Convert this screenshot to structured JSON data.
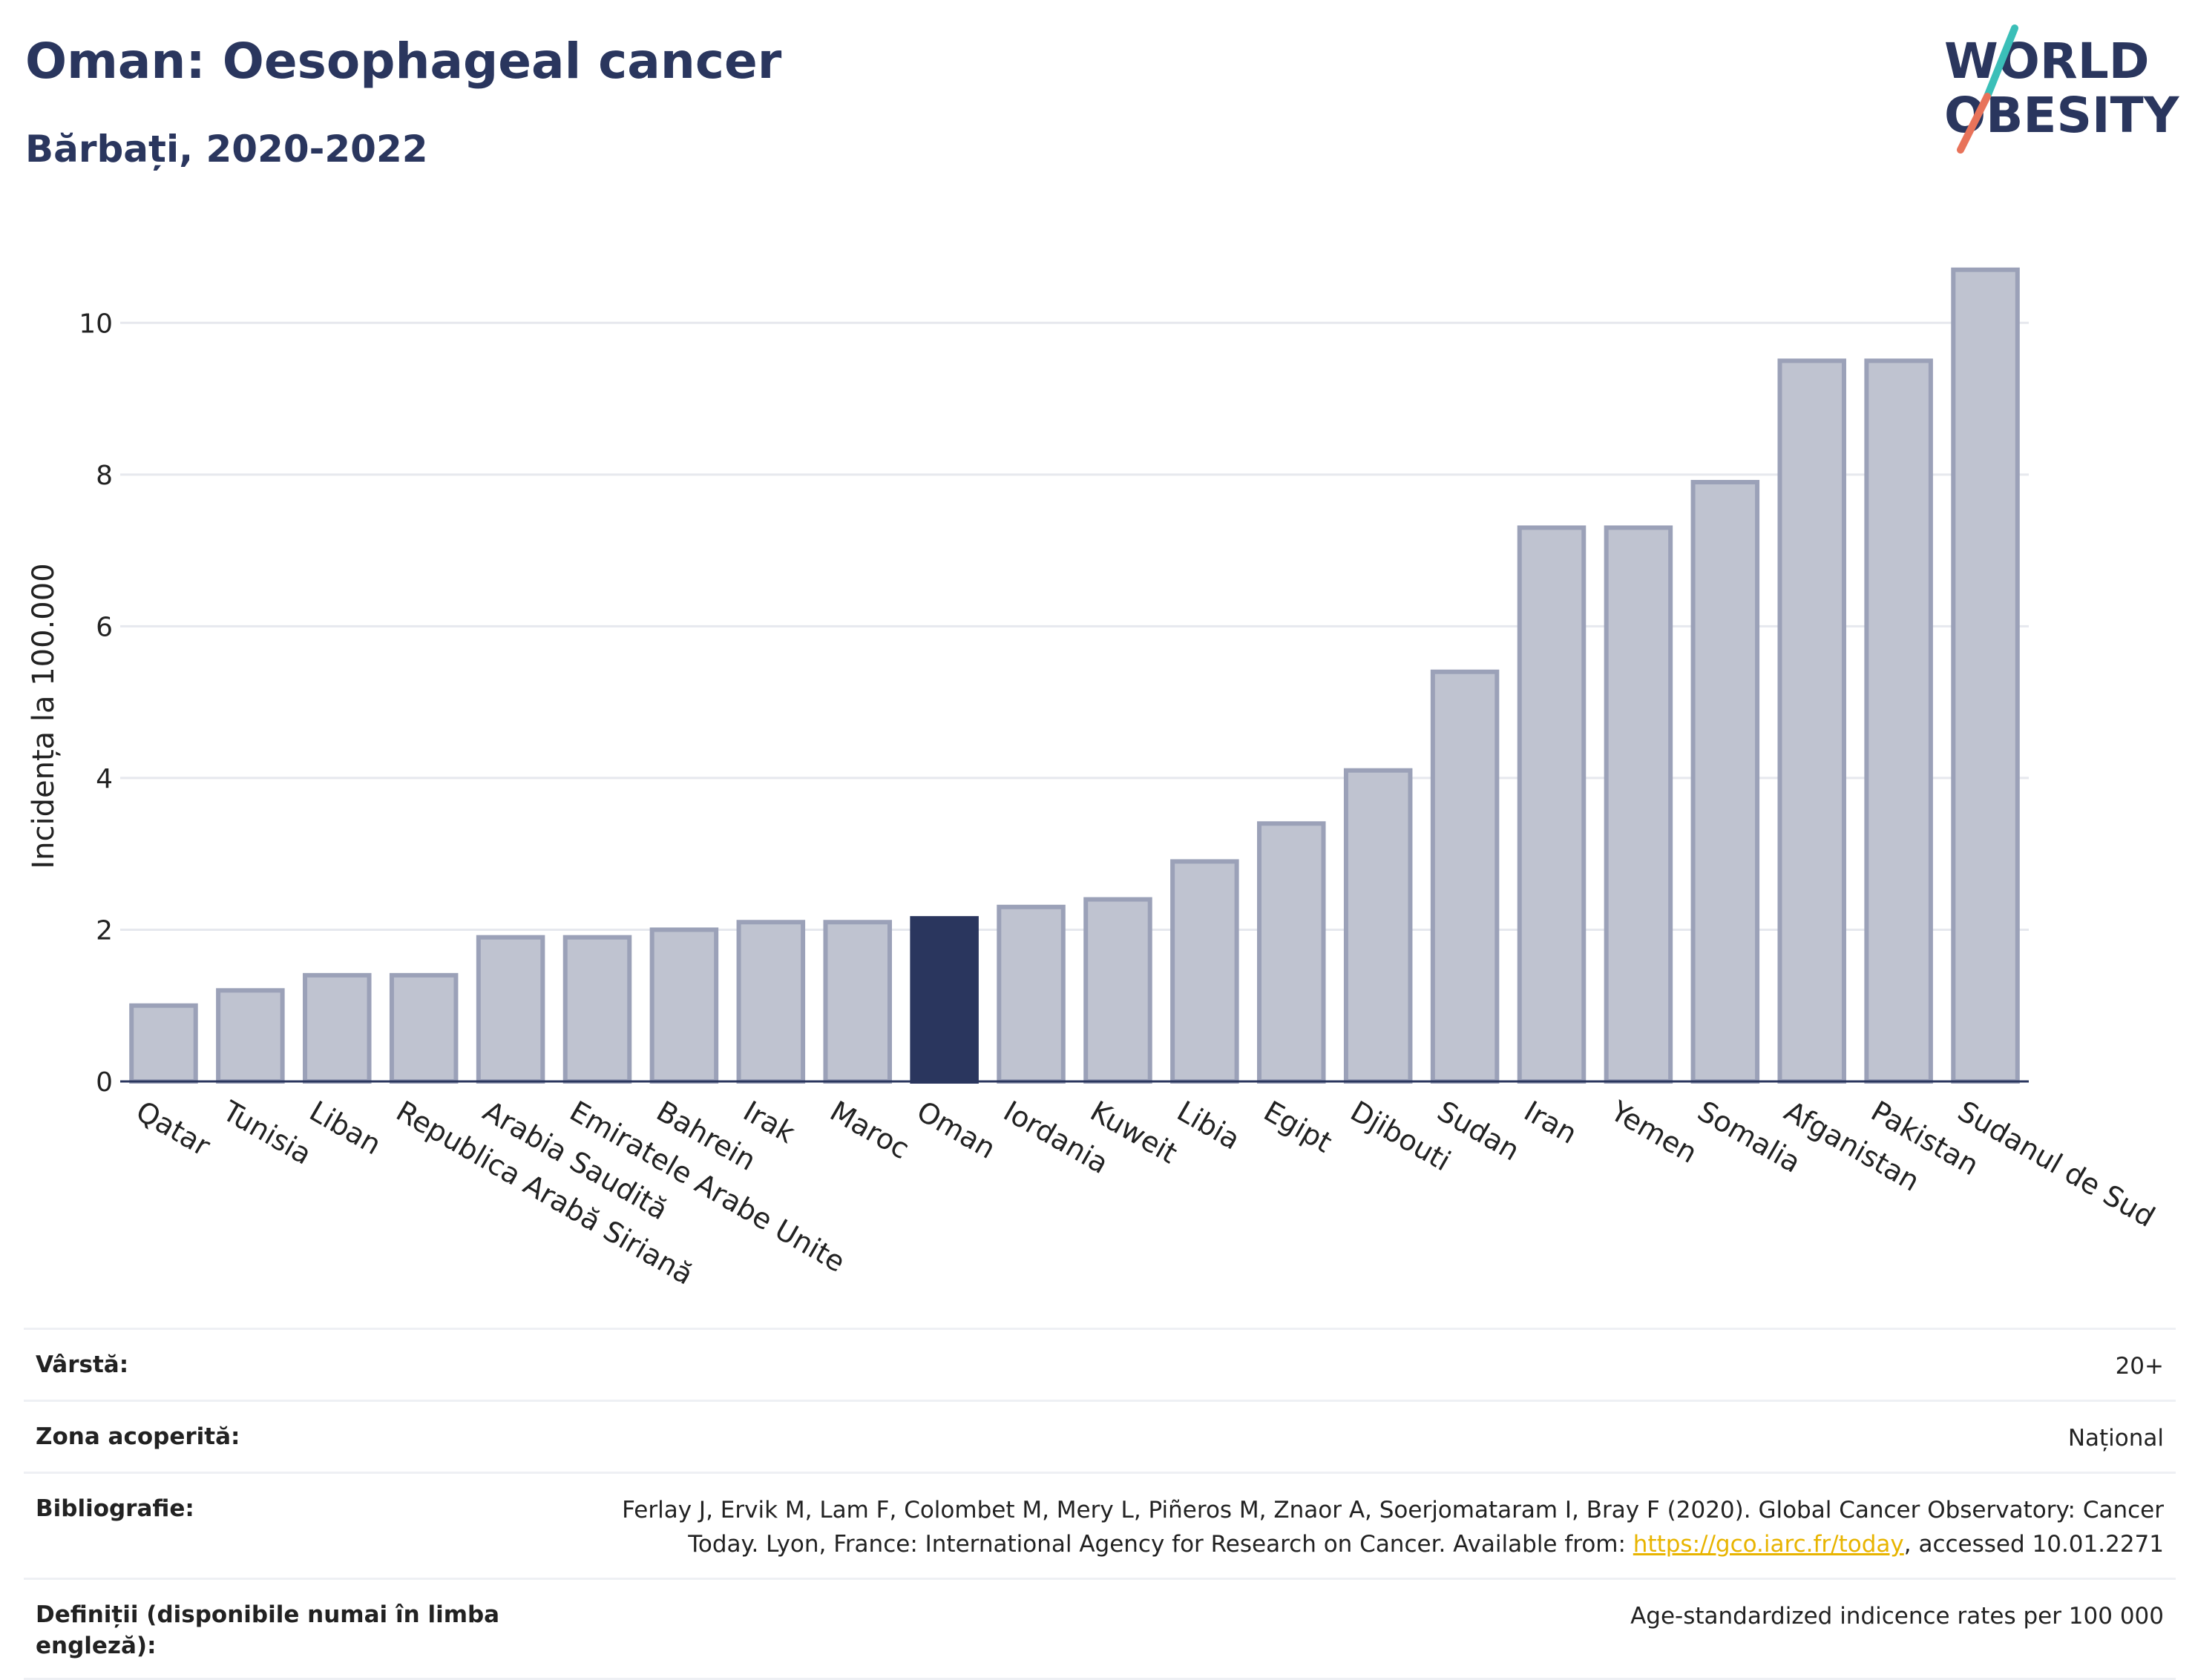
{
  "header": {
    "title": "Oman: Oesophageal cancer",
    "subtitle": "Bărbați, 2020-2022",
    "logo_text_1": "WORLD",
    "logo_text_2": "OBESITY"
  },
  "colors": {
    "bar_default": "#bfc3d0",
    "bar_stroke": "#9ba1b8",
    "bar_highlight": "#2a365e",
    "title": "#2a365e",
    "link": "#e8b400"
  },
  "chart_data": {
    "type": "bar",
    "ylabel": "Incidența la 100.000",
    "ylim": [
      0,
      11
    ],
    "yticks": [
      0,
      2,
      4,
      6,
      8,
      10
    ],
    "grid": true,
    "highlight": "Oman",
    "categories": [
      "Qatar",
      "Tunisia",
      "Liban",
      "Republica Arabă Siriană",
      "Arabia Saudită",
      "Emiratele Arabe Unite",
      "Bahrein",
      "Irak",
      "Maroc",
      "Oman",
      "Iordania",
      "Kuweit",
      "Libia",
      "Egipt",
      "Djibouti",
      "Sudan",
      "Iran",
      "Yemen",
      "Somalia",
      "Afganistan",
      "Pakistan",
      "Sudanul de Sud"
    ],
    "values": [
      1.0,
      1.2,
      1.4,
      1.4,
      1.9,
      1.9,
      2.0,
      2.1,
      2.1,
      2.15,
      2.3,
      2.4,
      2.9,
      3.4,
      4.1,
      5.4,
      7.3,
      7.3,
      7.9,
      9.5,
      9.5,
      10.7
    ]
  },
  "info": {
    "rows": [
      {
        "label": "Vârstă:",
        "value": "20+"
      },
      {
        "label": "Zona acoperită:",
        "value": "Național"
      },
      {
        "label": "Bibliografie:",
        "value_line1": "Ferlay J, Ervik M, Lam F, Colombet M, Mery L, Piñeros M, Znaor A, Soerjomataram I, Bray F (2020). Global Cancer Observatory: Cancer",
        "value_line2_pre": "Today. Lyon, France: International Agency for Research on Cancer. Available from: ",
        "link": "https://gco.iarc.fr/today",
        "value_line2_post": ", accessed 10.01.2271"
      },
      {
        "label": "Definiții (disponibile numai în limba engleză):",
        "value": "Age-standardized indicence rates per 100 000"
      }
    ]
  }
}
